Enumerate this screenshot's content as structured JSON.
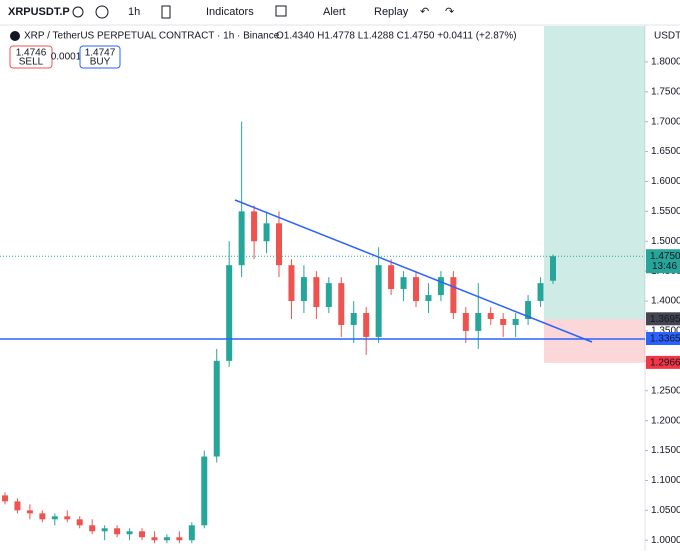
{
  "toolbar": {
    "symbol": "XRPUSDT.P",
    "interval": "1h",
    "indicators": "Indicators",
    "alert": "Alert",
    "replay": "Replay"
  },
  "legend": {
    "title": "XRP / TetherUS PERPETUAL CONTRACT · 1h · Binance",
    "ohlc": "O1.4340 H1.4778 L1.4288 C1.4750 +0.0411 (+2.87%)",
    "sell_price": "1.4746",
    "sell": "SELL",
    "spread": "0.0001",
    "buy_price": "1.4747",
    "buy": "BUY"
  },
  "chart": {
    "type": "candlestick",
    "currency": "USDT",
    "candles": [
      [
        1.075,
        1.08,
        1.06,
        1.065
      ],
      [
        1.065,
        1.07,
        1.045,
        1.05
      ],
      [
        1.05,
        1.06,
        1.035,
        1.045
      ],
      [
        1.045,
        1.05,
        1.03,
        1.035
      ],
      [
        1.035,
        1.045,
        1.025,
        1.04
      ],
      [
        1.04,
        1.05,
        1.03,
        1.035
      ],
      [
        1.035,
        1.04,
        1.02,
        1.025
      ],
      [
        1.025,
        1.035,
        1.01,
        1.015
      ],
      [
        1.015,
        1.025,
        1.0,
        1.02
      ],
      [
        1.02,
        1.025,
        1.005,
        1.01
      ],
      [
        1.01,
        1.02,
        1.0,
        1.015
      ],
      [
        1.015,
        1.02,
        1.0,
        1.005
      ],
      [
        1.005,
        1.015,
        0.995,
        1.0
      ],
      [
        1.0,
        1.01,
        0.995,
        1.005
      ],
      [
        1.005,
        1.015,
        0.995,
        1.0
      ],
      [
        1.0,
        1.03,
        0.995,
        1.025
      ],
      [
        1.025,
        1.15,
        1.02,
        1.14
      ],
      [
        1.14,
        1.32,
        1.13,
        1.3
      ],
      [
        1.3,
        1.5,
        1.29,
        1.46
      ],
      [
        1.46,
        1.7,
        1.44,
        1.55
      ],
      [
        1.55,
        1.56,
        1.47,
        1.5
      ],
      [
        1.5,
        1.55,
        1.48,
        1.53
      ],
      [
        1.53,
        1.55,
        1.44,
        1.46
      ],
      [
        1.46,
        1.47,
        1.37,
        1.4
      ],
      [
        1.4,
        1.46,
        1.38,
        1.44
      ],
      [
        1.44,
        1.45,
        1.37,
        1.39
      ],
      [
        1.39,
        1.44,
        1.38,
        1.43
      ],
      [
        1.43,
        1.44,
        1.34,
        1.36
      ],
      [
        1.36,
        1.4,
        1.33,
        1.38
      ],
      [
        1.38,
        1.39,
        1.31,
        1.34
      ],
      [
        1.34,
        1.49,
        1.33,
        1.46
      ],
      [
        1.46,
        1.47,
        1.41,
        1.42
      ],
      [
        1.42,
        1.45,
        1.4,
        1.44
      ],
      [
        1.44,
        1.45,
        1.39,
        1.4
      ],
      [
        1.4,
        1.43,
        1.38,
        1.41
      ],
      [
        1.41,
        1.45,
        1.4,
        1.44
      ],
      [
        1.44,
        1.45,
        1.37,
        1.38
      ],
      [
        1.38,
        1.39,
        1.33,
        1.35
      ],
      [
        1.35,
        1.43,
        1.32,
        1.38
      ],
      [
        1.38,
        1.39,
        1.36,
        1.37
      ],
      [
        1.37,
        1.38,
        1.34,
        1.36
      ],
      [
        1.36,
        1.38,
        1.34,
        1.37
      ],
      [
        1.37,
        1.41,
        1.36,
        1.4
      ],
      [
        1.4,
        1.44,
        1.39,
        1.43
      ],
      [
        1.434,
        1.4778,
        1.4288,
        1.475
      ]
    ],
    "ylim": [
      0.982,
      1.86
    ],
    "yticks": [
      {
        "value": 1.8,
        "label": "1.8000"
      },
      {
        "value": 1.75,
        "label": "1.7500"
      },
      {
        "value": 1.7,
        "label": "1.7000"
      },
      {
        "value": 1.65,
        "label": "1.6500"
      },
      {
        "value": 1.6,
        "label": "1.6000"
      },
      {
        "value": 1.55,
        "label": "1.5500"
      },
      {
        "value": 1.5,
        "label": "1.5000"
      },
      {
        "value": 1.45,
        "label": "1.4500"
      },
      {
        "value": 1.4,
        "label": "1.4000"
      },
      {
        "value": 1.35,
        "label": "1.3500"
      },
      {
        "value": 1.3,
        "label": "1.3000"
      },
      {
        "value": 1.25,
        "label": "1.2500"
      },
      {
        "value": 1.2,
        "label": "1.2000"
      },
      {
        "value": 1.15,
        "label": "1.1500"
      },
      {
        "value": 1.1,
        "label": "1.1000"
      },
      {
        "value": 1.05,
        "label": "1.0500"
      },
      {
        "value": 1.0,
        "label": "1.0000"
      }
    ],
    "last_price": {
      "value": 1.475,
      "label": "1.4750",
      "countdown": "13:46"
    },
    "horizontal_line": {
      "value": 1.3365,
      "label": "1.3365"
    },
    "position": {
      "entry": {
        "value": 1.3695,
        "label": "1.3695"
      },
      "stop": {
        "value": 1.2966,
        "label": "1.2966"
      }
    },
    "up_color": "#26a69a",
    "down_color": "#ef5350"
  }
}
